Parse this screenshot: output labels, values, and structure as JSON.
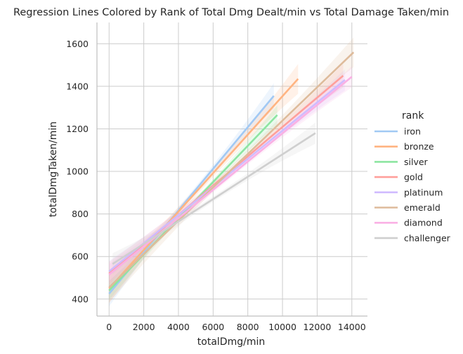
{
  "chart_data": {
    "type": "line",
    "title": "Regression Lines Colored by Rank of Total Dmg Dealt/min vs Total Damage Taken/min",
    "xlabel": "totalDmg/min",
    "ylabel": "totalDmgTaken/min",
    "xlim": [
      -700,
      14900
    ],
    "ylim": [
      320,
      1700
    ],
    "xticks": [
      0,
      2000,
      4000,
      6000,
      8000,
      10000,
      12000,
      14000
    ],
    "yticks": [
      400,
      600,
      800,
      1000,
      1200,
      1400,
      1600
    ],
    "grid": true,
    "legend_title": "rank",
    "legend_position": "right",
    "series": [
      {
        "name": "iron",
        "color": "#a1c9f4",
        "x": [
          0,
          9500
        ],
        "y": [
          425,
          1355
        ],
        "ci": 60
      },
      {
        "name": "bronze",
        "color": "#ffb482",
        "x": [
          0,
          10900
        ],
        "y": [
          450,
          1435
        ],
        "ci": 70
      },
      {
        "name": "silver",
        "color": "#8de5a1",
        "x": [
          0,
          9700
        ],
        "y": [
          440,
          1265
        ],
        "ci": 45
      },
      {
        "name": "gold",
        "color": "#ff9f9b",
        "x": [
          0,
          13500
        ],
        "y": [
          520,
          1450
        ],
        "ci": 55
      },
      {
        "name": "platinum",
        "color": "#d0bbff",
        "x": [
          0,
          13600
        ],
        "y": [
          530,
          1430
        ],
        "ci": 50
      },
      {
        "name": "emerald",
        "color": "#debb9b",
        "x": [
          0,
          14100
        ],
        "y": [
          455,
          1560
        ],
        "ci": 70
      },
      {
        "name": "diamond",
        "color": "#fab0e4",
        "x": [
          0,
          14000
        ],
        "y": [
          515,
          1445
        ],
        "ci": 50
      },
      {
        "name": "challenger",
        "color": "#cfcfcf",
        "x": [
          200,
          11900
        ],
        "y": [
          565,
          1180
        ],
        "ci": 50
      }
    ]
  }
}
